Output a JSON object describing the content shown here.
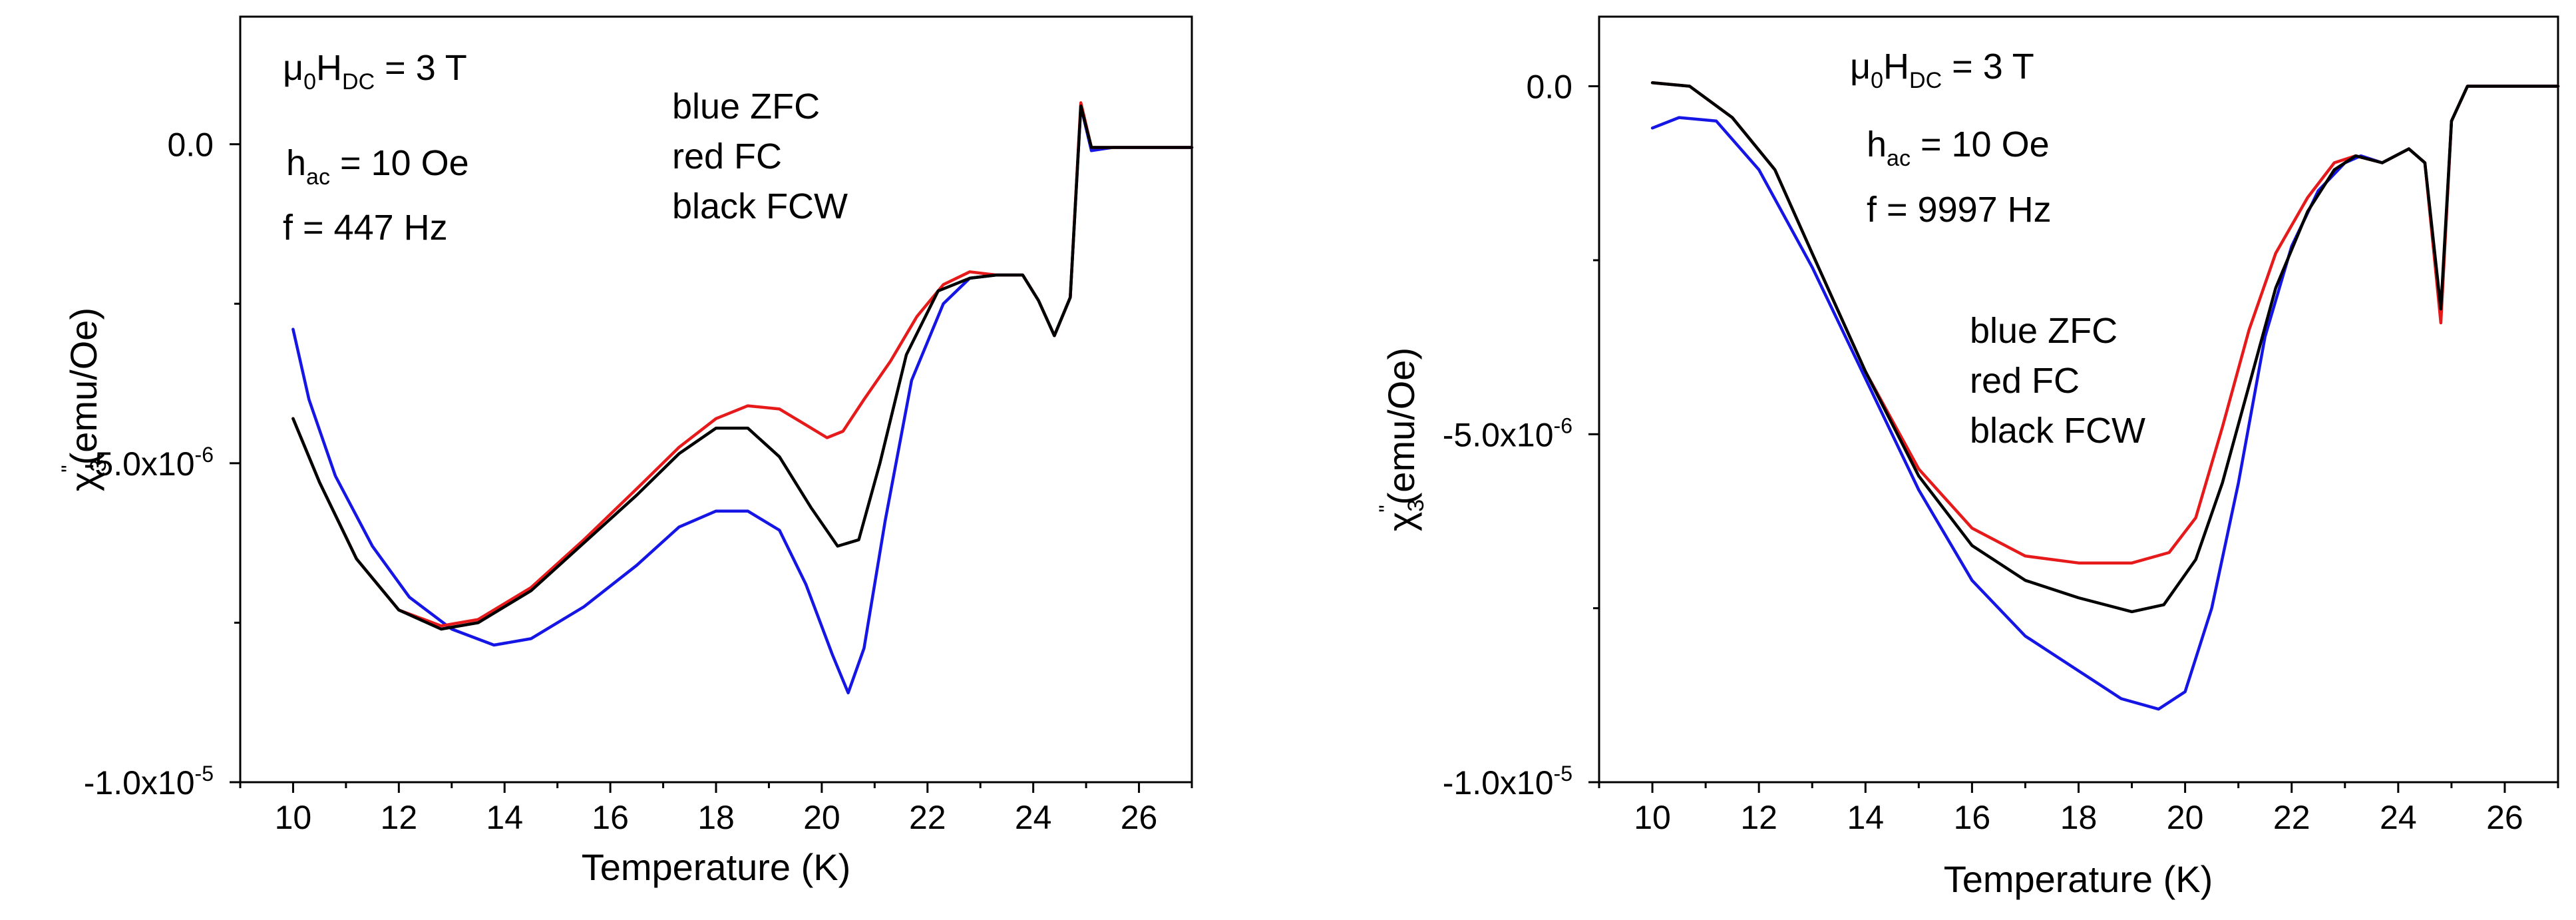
{
  "colors": {
    "zfc": "#1515e6",
    "fc": "#e61a1a",
    "fcw": "#000000"
  },
  "chart_data": [
    {
      "type": "line",
      "title": "",
      "xlabel": "Temperature (K)",
      "ylabel": {
        "main": "χ",
        "sub": "3",
        "sup": "\"",
        "unit": "(emu/Oe)"
      },
      "xlim": [
        9,
        27
      ],
      "ylim": [
        -1e-05,
        2e-06
      ],
      "x_ticks": [
        10,
        12,
        14,
        16,
        18,
        20,
        22,
        24,
        26
      ],
      "x_tick_labels": [
        "10",
        "12",
        "14",
        "16",
        "18",
        "20",
        "22",
        "24",
        "26"
      ],
      "y_ticks": [
        0.0,
        -5e-06,
        -1e-05
      ],
      "y_tick_labels": [
        {
          "mant": "0.0",
          "exp": ""
        },
        {
          "mant": "-5.0x10",
          "exp": "-6"
        },
        {
          "mant": "-1.0x10",
          "exp": "-5"
        }
      ],
      "annotations": {
        "field_pre": "μ",
        "field_sub1": "0",
        "field_mid": "H",
        "field_sub2": "DC",
        "field_post": " = 3 T",
        "hac_pre": "h",
        "hac_sub": "ac",
        "hac_post": " = 10 Oe",
        "freq": "f = 447 Hz"
      },
      "legend": [
        "blue ZFC",
        "red FC",
        "black FCW"
      ],
      "series": [
        {
          "name": "ZFC",
          "color": "#1515e6",
          "points": [
            [
              10.0,
              -2.9e-06
            ],
            [
              10.3,
              -4e-06
            ],
            [
              10.8,
              -5.2e-06
            ],
            [
              11.5,
              -6.3e-06
            ],
            [
              12.2,
              -7.1e-06
            ],
            [
              13.0,
              -7.6e-06
            ],
            [
              13.8,
              -7.85e-06
            ],
            [
              14.5,
              -7.75e-06
            ],
            [
              15.5,
              -7.25e-06
            ],
            [
              16.5,
              -6.6e-06
            ],
            [
              17.3,
              -6e-06
            ],
            [
              18.0,
              -5.75e-06
            ],
            [
              18.6,
              -5.75e-06
            ],
            [
              19.2,
              -6.05e-06
            ],
            [
              19.7,
              -6.9e-06
            ],
            [
              20.2,
              -8e-06
            ],
            [
              20.5,
              -8.6e-06
            ],
            [
              20.8,
              -7.9e-06
            ],
            [
              21.2,
              -5.9e-06
            ],
            [
              21.7,
              -3.7e-06
            ],
            [
              22.3,
              -2.5e-06
            ],
            [
              22.8,
              -2.1e-06
            ],
            [
              23.3,
              -2.05e-06
            ],
            [
              23.8,
              -2.05e-06
            ],
            [
              24.1,
              -2.45e-06
            ],
            [
              24.4,
              -3e-06
            ],
            [
              24.7,
              -2.4e-06
            ],
            [
              24.9,
              6e-07
            ],
            [
              25.1,
              -1e-07
            ],
            [
              25.5,
              -5e-08
            ],
            [
              27.0,
              -5e-08
            ]
          ]
        },
        {
          "name": "FC",
          "color": "#e61a1a",
          "points": [
            [
              10.0,
              -4.3e-06
            ],
            [
              10.5,
              -5.3e-06
            ],
            [
              11.2,
              -6.5e-06
            ],
            [
              12.0,
              -7.3e-06
            ],
            [
              12.8,
              -7.55e-06
            ],
            [
              13.5,
              -7.45e-06
            ],
            [
              14.5,
              -6.95e-06
            ],
            [
              15.5,
              -6.2e-06
            ],
            [
              16.5,
              -5.4e-06
            ],
            [
              17.3,
              -4.75e-06
            ],
            [
              18.0,
              -4.3e-06
            ],
            [
              18.6,
              -4.1e-06
            ],
            [
              19.2,
              -4.15e-06
            ],
            [
              19.7,
              -4.4e-06
            ],
            [
              20.1,
              -4.6e-06
            ],
            [
              20.4,
              -4.5e-06
            ],
            [
              20.8,
              -4e-06
            ],
            [
              21.3,
              -3.4e-06
            ],
            [
              21.8,
              -2.7e-06
            ],
            [
              22.3,
              -2.2e-06
            ],
            [
              22.8,
              -2e-06
            ],
            [
              23.3,
              -2.05e-06
            ],
            [
              23.8,
              -2.05e-06
            ],
            [
              24.1,
              -2.45e-06
            ],
            [
              24.4,
              -3e-06
            ],
            [
              24.7,
              -2.4e-06
            ],
            [
              24.9,
              6.5e-07
            ],
            [
              25.1,
              -5e-08
            ],
            [
              25.5,
              -5e-08
            ],
            [
              27.0,
              -5e-08
            ]
          ]
        },
        {
          "name": "FCW",
          "color": "#000000",
          "points": [
            [
              10.0,
              -4.3e-06
            ],
            [
              10.5,
              -5.3e-06
            ],
            [
              11.2,
              -6.5e-06
            ],
            [
              12.0,
              -7.3e-06
            ],
            [
              12.8,
              -7.6e-06
            ],
            [
              13.5,
              -7.5e-06
            ],
            [
              14.5,
              -7e-06
            ],
            [
              15.5,
              -6.25e-06
            ],
            [
              16.5,
              -5.5e-06
            ],
            [
              17.3,
              -4.85e-06
            ],
            [
              18.0,
              -4.45e-06
            ],
            [
              18.6,
              -4.45e-06
            ],
            [
              19.2,
              -4.9e-06
            ],
            [
              19.8,
              -5.7e-06
            ],
            [
              20.3,
              -6.3e-06
            ],
            [
              20.7,
              -6.2e-06
            ],
            [
              21.1,
              -5e-06
            ],
            [
              21.6,
              -3.3e-06
            ],
            [
              22.2,
              -2.3e-06
            ],
            [
              22.8,
              -2.1e-06
            ],
            [
              23.3,
              -2.05e-06
            ],
            [
              23.8,
              -2.05e-06
            ],
            [
              24.1,
              -2.45e-06
            ],
            [
              24.4,
              -3e-06
            ],
            [
              24.7,
              -2.4e-06
            ],
            [
              24.9,
              6e-07
            ],
            [
              25.1,
              -5e-08
            ],
            [
              25.5,
              -5e-08
            ],
            [
              27.0,
              -5e-08
            ]
          ]
        }
      ]
    },
    {
      "type": "line",
      "title": "",
      "xlabel": "Temperature (K)",
      "ylabel": {
        "main": "χ",
        "sub": "3",
        "sup": "\"",
        "unit": "(emu/Oe)"
      },
      "xlim": [
        9,
        27
      ],
      "ylim": [
        -1e-05,
        1e-06
      ],
      "x_ticks": [
        10,
        12,
        14,
        16,
        18,
        20,
        22,
        24,
        26
      ],
      "x_tick_labels": [
        "10",
        "12",
        "14",
        "16",
        "18",
        "20",
        "22",
        "24",
        "26"
      ],
      "y_ticks": [
        0.0,
        -5e-06,
        -1e-05
      ],
      "y_tick_labels": [
        {
          "mant": "0.0",
          "exp": ""
        },
        {
          "mant": "-5.0x10",
          "exp": "-6"
        },
        {
          "mant": "-1.0x10",
          "exp": "-5"
        }
      ],
      "annotations": {
        "field_pre": "μ",
        "field_sub1": "0",
        "field_mid": "H",
        "field_sub2": "DC",
        "field_post": " = 3 T",
        "hac_pre": "h",
        "hac_sub": "ac",
        "hac_post": " = 10 Oe",
        "freq": "f = 9997 Hz"
      },
      "legend": [
        "blue ZFC",
        "red FC",
        "black FCW"
      ],
      "series": [
        {
          "name": "ZFC",
          "color": "#1515e6",
          "points": [
            [
              10.0,
              -6e-07
            ],
            [
              10.5,
              -4.5e-07
            ],
            [
              11.2,
              -5e-07
            ],
            [
              12.0,
              -1.2e-06
            ],
            [
              13.0,
              -2.6e-06
            ],
            [
              14.0,
              -4.2e-06
            ],
            [
              15.0,
              -5.8e-06
            ],
            [
              16.0,
              -7.1e-06
            ],
            [
              17.0,
              -7.9e-06
            ],
            [
              18.0,
              -8.4e-06
            ],
            [
              18.8,
              -8.8e-06
            ],
            [
              19.5,
              -8.95e-06
            ],
            [
              20.0,
              -8.7e-06
            ],
            [
              20.5,
              -7.5e-06
            ],
            [
              21.0,
              -5.7e-06
            ],
            [
              21.5,
              -3.6e-06
            ],
            [
              22.0,
              -2.3e-06
            ],
            [
              22.5,
              -1.5e-06
            ],
            [
              23.0,
              -1.1e-06
            ],
            [
              23.3,
              -1e-06
            ],
            [
              23.7,
              -1.1e-06
            ],
            [
              24.2,
              -9e-07
            ],
            [
              24.5,
              -1.1e-06
            ],
            [
              24.8,
              -3.3e-06
            ],
            [
              25.0,
              -5e-07
            ],
            [
              25.3,
              0.0
            ],
            [
              27.0,
              0.0
            ]
          ]
        },
        {
          "name": "FC",
          "color": "#e61a1a",
          "points": [
            [
              10.0,
              5e-08
            ],
            [
              10.7,
              0.0
            ],
            [
              11.5,
              -4.5e-07
            ],
            [
              12.3,
              -1.2e-06
            ],
            [
              13.0,
              -2.4e-06
            ],
            [
              14.0,
              -4.1e-06
            ],
            [
              15.0,
              -5.5e-06
            ],
            [
              16.0,
              -6.35e-06
            ],
            [
              17.0,
              -6.75e-06
            ],
            [
              18.0,
              -6.85e-06
            ],
            [
              19.0,
              -6.85e-06
            ],
            [
              19.7,
              -6.7e-06
            ],
            [
              20.2,
              -6.2e-06
            ],
            [
              20.7,
              -4.9e-06
            ],
            [
              21.2,
              -3.5e-06
            ],
            [
              21.7,
              -2.4e-06
            ],
            [
              22.3,
              -1.6e-06
            ],
            [
              22.8,
              -1.1e-06
            ],
            [
              23.2,
              -1e-06
            ],
            [
              23.7,
              -1.1e-06
            ],
            [
              24.2,
              -9e-07
            ],
            [
              24.5,
              -1.1e-06
            ],
            [
              24.8,
              -3.4e-06
            ],
            [
              25.0,
              -5e-07
            ],
            [
              25.3,
              0.0
            ],
            [
              27.0,
              0.0
            ]
          ]
        },
        {
          "name": "FCW",
          "color": "#000000",
          "points": [
            [
              10.0,
              5e-08
            ],
            [
              10.7,
              0.0
            ],
            [
              11.5,
              -4.5e-07
            ],
            [
              12.3,
              -1.2e-06
            ],
            [
              13.0,
              -2.4e-06
            ],
            [
              14.0,
              -4.1e-06
            ],
            [
              15.0,
              -5.6e-06
            ],
            [
              16.0,
              -6.6e-06
            ],
            [
              17.0,
              -7.1e-06
            ],
            [
              18.0,
              -7.35e-06
            ],
            [
              19.0,
              -7.55e-06
            ],
            [
              19.6,
              -7.45e-06
            ],
            [
              20.2,
              -6.8e-06
            ],
            [
              20.7,
              -5.7e-06
            ],
            [
              21.2,
              -4.3e-06
            ],
            [
              21.7,
              -2.9e-06
            ],
            [
              22.3,
              -1.8e-06
            ],
            [
              22.8,
              -1.2e-06
            ],
            [
              23.2,
              -1e-06
            ],
            [
              23.7,
              -1.1e-06
            ],
            [
              24.2,
              -9e-07
            ],
            [
              24.5,
              -1.1e-06
            ],
            [
              24.8,
              -3.2e-06
            ],
            [
              25.0,
              -5e-07
            ],
            [
              25.3,
              0.0
            ],
            [
              27.0,
              0.0
            ]
          ]
        }
      ]
    }
  ]
}
